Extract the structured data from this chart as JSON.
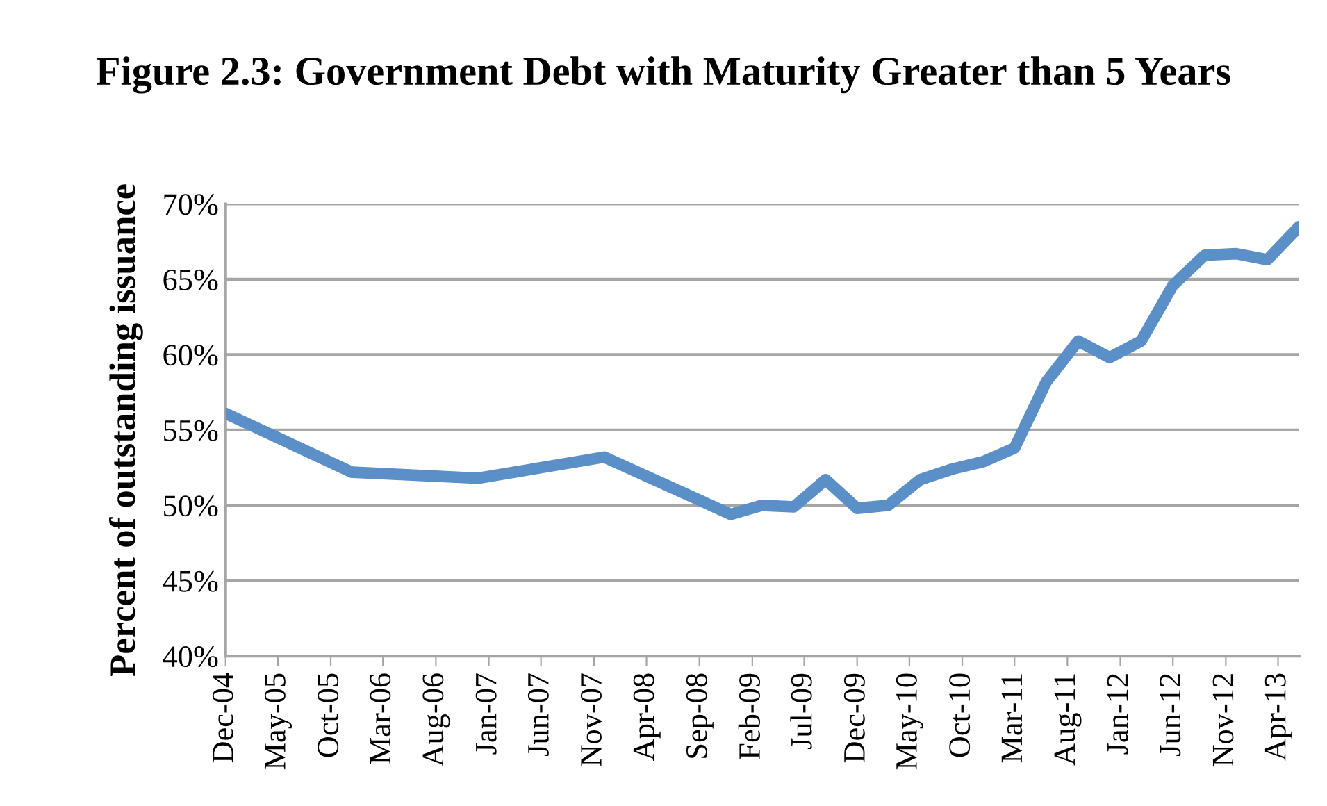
{
  "chart_data": {
    "type": "line",
    "title": "Figure 2.3: Government Debt with Maturity Greater than 5 Years",
    "ylabel": "Percent of outstanding issuance",
    "x": [
      "2004-12",
      "2005-12",
      "2006-12",
      "2007-12",
      "2008-12",
      "2009-03",
      "2009-06",
      "2009-09",
      "2009-12",
      "2010-03",
      "2010-06",
      "2010-09",
      "2010-12",
      "2011-03",
      "2011-06",
      "2011-09",
      "2011-12",
      "2012-03",
      "2012-06",
      "2012-09",
      "2012-12",
      "2013-03",
      "2013-06"
    ],
    "series": [
      {
        "color": "#5b8fc7",
        "values": [
          56.1,
          52.2,
          51.8,
          53.2,
          49.4,
          50.0,
          49.9,
          51.7,
          49.8,
          50.0,
          51.7,
          52.4,
          52.9,
          53.8,
          58.2,
          60.9,
          59.8,
          60.9,
          64.6,
          66.6,
          66.7,
          66.3,
          68.5
        ]
      }
    ],
    "xlim": [
      "2004-12",
      "2013-06"
    ],
    "xticks": [
      {
        "value": "2004-12",
        "label": "Dec-04"
      },
      {
        "value": "2005-05",
        "label": "May-05"
      },
      {
        "value": "2005-10",
        "label": "Oct-05"
      },
      {
        "value": "2006-03",
        "label": "Mar-06"
      },
      {
        "value": "2006-08",
        "label": "Aug-06"
      },
      {
        "value": "2007-01",
        "label": "Jan-07"
      },
      {
        "value": "2007-06",
        "label": "Jun-07"
      },
      {
        "value": "2007-11",
        "label": "Nov-07"
      },
      {
        "value": "2008-04",
        "label": "Apr-08"
      },
      {
        "value": "2008-09",
        "label": "Sep-08"
      },
      {
        "value": "2009-02",
        "label": "Feb-09"
      },
      {
        "value": "2009-07",
        "label": "Jul-09"
      },
      {
        "value": "2009-12",
        "label": "Dec-09"
      },
      {
        "value": "2010-05",
        "label": "May-10"
      },
      {
        "value": "2010-10",
        "label": "Oct-10"
      },
      {
        "value": "2011-03",
        "label": "Mar-11"
      },
      {
        "value": "2011-08",
        "label": "Aug-11"
      },
      {
        "value": "2012-01",
        "label": "Jan-12"
      },
      {
        "value": "2012-06",
        "label": "Jun-12"
      },
      {
        "value": "2012-11",
        "label": "Nov-12"
      },
      {
        "value": "2013-04",
        "label": "Apr-13"
      }
    ],
    "ylim": [
      40,
      70
    ],
    "yticks": [
      {
        "value": 40,
        "label": "40%"
      },
      {
        "value": 45,
        "label": "45%"
      },
      {
        "value": 50,
        "label": "50%"
      },
      {
        "value": 55,
        "label": "55%"
      },
      {
        "value": 60,
        "label": "60%"
      },
      {
        "value": 65,
        "label": "65%"
      },
      {
        "value": 70,
        "label": "70%"
      }
    ],
    "grid": "y",
    "marker": "none",
    "line_style": "solid",
    "legend": false
  }
}
